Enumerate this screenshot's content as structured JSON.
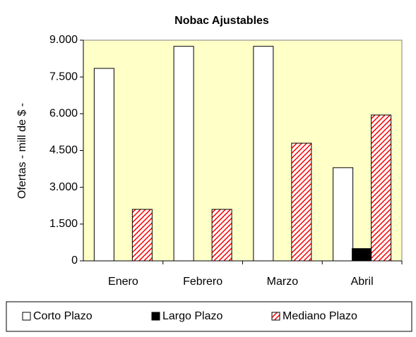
{
  "chart_data": {
    "type": "bar",
    "title": "Nobac Ajustables",
    "y_label": "Ofertas - mill de $ -",
    "categories": [
      "Enero",
      "Febrero",
      "Marzo",
      "Abril"
    ],
    "series": [
      {
        "name": "Corto Plazo",
        "color": "#ffffff",
        "values": [
          7850,
          8750,
          8750,
          3800
        ]
      },
      {
        "name": "Largo Plazo",
        "color": "#000000",
        "values": [
          0,
          0,
          0,
          500
        ]
      },
      {
        "name": "Mediano Plazo",
        "color": "#ff0000",
        "pattern": "hatch",
        "values": [
          2100,
          2100,
          4800,
          5950
        ]
      }
    ],
    "ylim": [
      0,
      9000
    ],
    "yticks": [
      0,
      {
        "value": 1500,
        "label": "1.500"
      },
      {
        "value": 3000,
        "label": "3.000"
      },
      {
        "value": 4500,
        "label": "4.500"
      },
      {
        "value": 6000,
        "label": "6.000"
      },
      {
        "value": 7500,
        "label": "7.500"
      },
      {
        "value": 9000,
        "label": "9.000"
      }
    ],
    "legend": "bottom",
    "background": "#ffffc8"
  }
}
